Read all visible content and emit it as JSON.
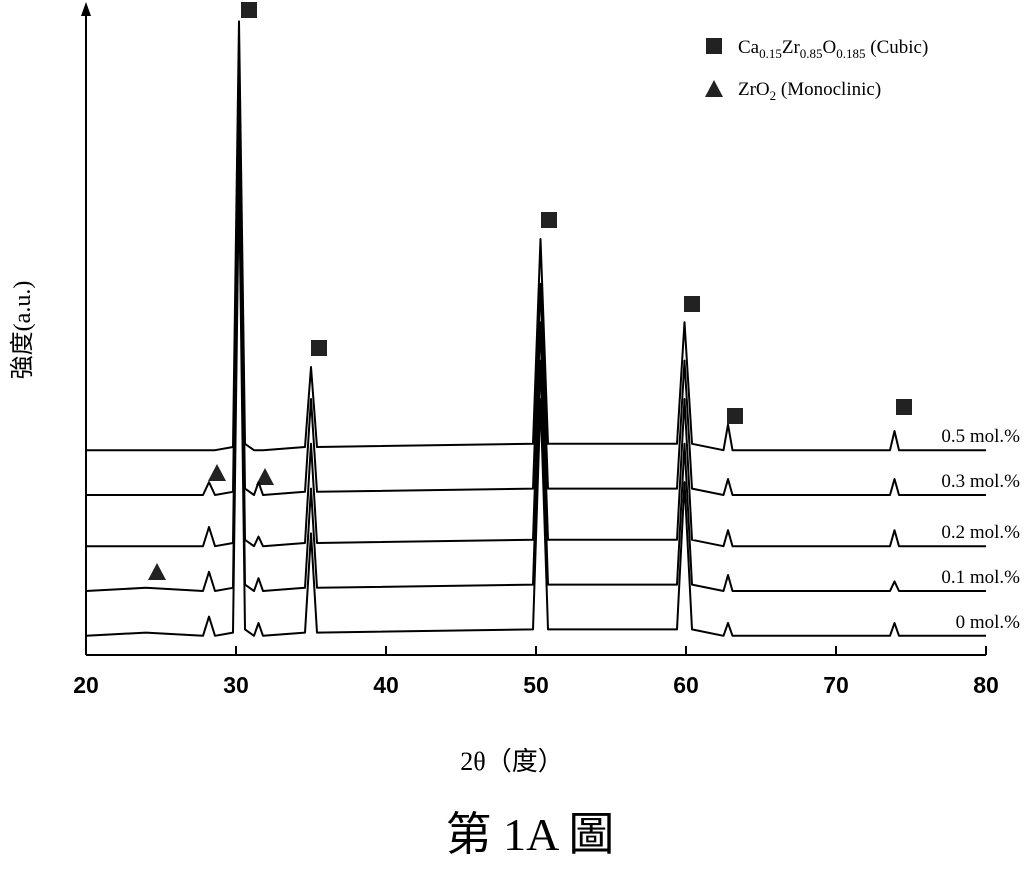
{
  "chart_data": {
    "type": "line",
    "xlabel": "2θ（度）",
    "ylabel": "強度(a.u.)",
    "caption": "第 1A 圖",
    "legend": [
      {
        "parts": [
          "Ca",
          "0.15",
          "Zr",
          "0.85",
          "O",
          "0.185",
          " (Cubic)"
        ]
      },
      {
        "parts": [
          "ZrO",
          "2",
          " (Monoclinic)"
        ]
      }
    ],
    "xlim": [
      20,
      80
    ],
    "xticks": [
      20,
      30,
      40,
      50,
      60,
      70,
      80
    ],
    "ylim": [
      0,
      100
    ],
    "x": [
      20,
      24,
      27.8,
      28.2,
      28.6,
      29.8,
      30.2,
      30.6,
      31.2,
      31.5,
      31.8,
      34.6,
      35.0,
      35.4,
      49.8,
      50.3,
      50.8,
      59.4,
      59.9,
      60.4,
      62.5,
      62.8,
      63.1,
      73.6,
      73.9,
      74.2,
      80
    ],
    "series": [
      {
        "name": "0.5 mol.%",
        "color": "#000000",
        "values": [
          32,
          32,
          32,
          32,
          32,
          32.5,
          99,
          33,
          32,
          32,
          32,
          32.5,
          45,
          32.5,
          33,
          65,
          33,
          33,
          52,
          33,
          32,
          36,
          32,
          32,
          35,
          32,
          32
        ]
      },
      {
        "name": "0.3 mol.%",
        "color": "#000000",
        "values": [
          25,
          25,
          25,
          27,
          25,
          25.5,
          90,
          26,
          25,
          27,
          25,
          25.5,
          40,
          25.5,
          26,
          58,
          26,
          26,
          46,
          26,
          25,
          27.5,
          25,
          25,
          27.5,
          25,
          25
        ]
      },
      {
        "name": "0.2 mol.%",
        "color": "#000000",
        "values": [
          17,
          17,
          17,
          20,
          17,
          17.5,
          85,
          18,
          17,
          18.5,
          17,
          17.5,
          33,
          17.5,
          18,
          52,
          18,
          18,
          40,
          18,
          17,
          19.5,
          17,
          17,
          19.5,
          17,
          17
        ]
      },
      {
        "name": "0.1 mol.%",
        "color": "#000000",
        "values": [
          10,
          10.5,
          10,
          13,
          10,
          10.5,
          80,
          11,
          10,
          12,
          10,
          10.5,
          26,
          10.5,
          11,
          46,
          11,
          11,
          33,
          11,
          10,
          12.5,
          10,
          10,
          11.5,
          10,
          10
        ]
      },
      {
        "name": "0 mol.%",
        "color": "#000000",
        "values": [
          3,
          3.5,
          3,
          6,
          3,
          3.5,
          75,
          4,
          3,
          5,
          3,
          3.5,
          19,
          3.5,
          4,
          40,
          4,
          4,
          27,
          4,
          3,
          5,
          3,
          3,
          5,
          3,
          3
        ]
      }
    ]
  }
}
